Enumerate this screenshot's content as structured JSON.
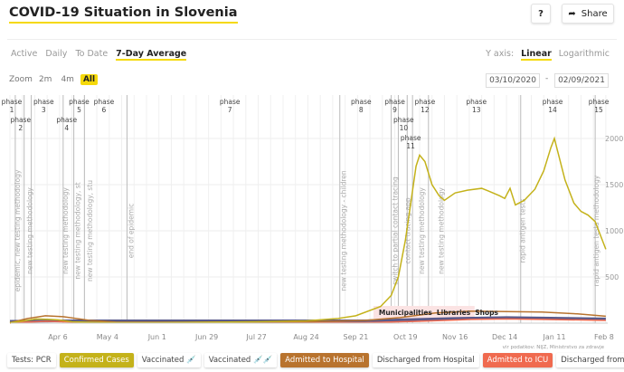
{
  "header": {
    "title": "COVID-19 Situation in Slovenia",
    "help": "?",
    "share": "Share"
  },
  "tabs": [
    "Active",
    "Daily",
    "To Date",
    "7-Day Average"
  ],
  "active_tab": "7-Day Average",
  "yaxis": {
    "label": "Y axis:",
    "options": [
      "Linear",
      "Logarithmic"
    ],
    "selected": "Linear"
  },
  "zoom": {
    "label": "Zoom",
    "options": [
      "2m",
      "4m",
      "All"
    ],
    "selected": "All"
  },
  "date_range": {
    "from": "03/10/2020",
    "sep": "-",
    "to": "02/09/2021"
  },
  "source": "vir podatkov: NIJZ, Ministrstvo za zdravje",
  "legend": [
    {
      "label": "Tests: PCR",
      "bg": "#ffffff",
      "fg": "#444"
    },
    {
      "label": "Confirmed Cases",
      "bg": "#c4b21a",
      "fg": "#fff"
    },
    {
      "label": "Vaccinated 💉",
      "bg": "#ffffff",
      "fg": "#444"
    },
    {
      "label": "Vaccinated 💉💉",
      "bg": "#ffffff",
      "fg": "#444"
    },
    {
      "label": "Admitted to Hospital",
      "bg": "#b8732e",
      "fg": "#fff"
    },
    {
      "label": "Discharged from Hospital",
      "bg": "#ffffff",
      "fg": "#444"
    },
    {
      "label": "Admitted to ICU",
      "bg": "#f06a4f",
      "fg": "#fff"
    },
    {
      "label": "Discharged from ICU",
      "bg": "#ffffff",
      "fg": "#444"
    }
  ],
  "chart_data": {
    "type": "line",
    "x_start": "2020-03-10",
    "x_days": 336,
    "ylim": [
      0,
      2500
    ],
    "yticks": [
      500,
      1000,
      1500,
      2000
    ],
    "xticks": [
      {
        "day": 27,
        "label": "Apr 6"
      },
      {
        "day": 55,
        "label": "May 4"
      },
      {
        "day": 83,
        "label": "Jun 1"
      },
      {
        "day": 111,
        "label": "Jun 29"
      },
      {
        "day": 139,
        "label": "Jul 27"
      },
      {
        "day": 167,
        "label": "Aug 24"
      },
      {
        "day": 195,
        "label": "Sep 21"
      },
      {
        "day": 223,
        "label": "Oct 19"
      },
      {
        "day": 251,
        "label": "Nov 16"
      },
      {
        "day": 279,
        "label": "Dec 14"
      },
      {
        "day": 307,
        "label": "Jan 11"
      },
      {
        "day": 335,
        "label": "Feb 8"
      }
    ],
    "series": [
      {
        "name": "Confirmed Cases",
        "color": "#c4b21a",
        "points": [
          [
            0,
            5
          ],
          [
            8,
            25
          ],
          [
            15,
            45
          ],
          [
            22,
            40
          ],
          [
            27,
            35
          ],
          [
            35,
            15
          ],
          [
            55,
            5
          ],
          [
            83,
            5
          ],
          [
            111,
            10
          ],
          [
            139,
            15
          ],
          [
            167,
            25
          ],
          [
            185,
            50
          ],
          [
            195,
            80
          ],
          [
            209,
            180
          ],
          [
            215,
            300
          ],
          [
            219,
            500
          ],
          [
            223,
            900
          ],
          [
            226,
            1300
          ],
          [
            229,
            1700
          ],
          [
            231,
            1820
          ],
          [
            234,
            1750
          ],
          [
            238,
            1500
          ],
          [
            242,
            1380
          ],
          [
            245,
            1330
          ],
          [
            251,
            1410
          ],
          [
            258,
            1440
          ],
          [
            266,
            1460
          ],
          [
            270,
            1430
          ],
          [
            276,
            1380
          ],
          [
            279,
            1350
          ],
          [
            282,
            1460
          ],
          [
            285,
            1280
          ],
          [
            290,
            1330
          ],
          [
            296,
            1450
          ],
          [
            301,
            1650
          ],
          [
            305,
            1900
          ],
          [
            307,
            2000
          ],
          [
            309,
            1850
          ],
          [
            313,
            1550
          ],
          [
            318,
            1300
          ],
          [
            322,
            1210
          ],
          [
            326,
            1170
          ],
          [
            330,
            1100
          ],
          [
            333,
            950
          ],
          [
            336,
            800
          ]
        ]
      },
      {
        "name": "Admitted to Hospital",
        "color": "#b8732e",
        "points": [
          [
            0,
            5
          ],
          [
            10,
            50
          ],
          [
            20,
            80
          ],
          [
            30,
            70
          ],
          [
            45,
            30
          ],
          [
            60,
            10
          ],
          [
            100,
            10
          ],
          [
            170,
            15
          ],
          [
            200,
            30
          ],
          [
            220,
            60
          ],
          [
            240,
            110
          ],
          [
            260,
            130
          ],
          [
            280,
            125
          ],
          [
            300,
            120
          ],
          [
            320,
            100
          ],
          [
            336,
            75
          ]
        ]
      },
      {
        "name": "Admitted to ICU",
        "color": "#f06a4f",
        "points": [
          [
            0,
            2
          ],
          [
            20,
            20
          ],
          [
            40,
            10
          ],
          [
            80,
            3
          ],
          [
            200,
            5
          ],
          [
            230,
            20
          ],
          [
            260,
            40
          ],
          [
            280,
            45
          ],
          [
            300,
            40
          ],
          [
            336,
            30
          ]
        ]
      },
      {
        "name": "Tests: PCR",
        "color": "#5a5a8a",
        "points": [
          [
            0,
            20
          ],
          [
            30,
            25
          ],
          [
            200,
            25
          ],
          [
            250,
            50
          ],
          [
            280,
            60
          ],
          [
            300,
            55
          ],
          [
            336,
            45
          ]
        ]
      }
    ],
    "phases": [
      {
        "label": "phase",
        "n": "1",
        "day": 1
      },
      {
        "label": "phase",
        "n": "2",
        "day": 6
      },
      {
        "label": "phase",
        "n": "3",
        "day": 19
      },
      {
        "label": "phase",
        "n": "4",
        "day": 32
      },
      {
        "label": "phase",
        "n": "5",
        "day": 39
      },
      {
        "label": "phase",
        "n": "6",
        "day": 53
      },
      {
        "label": "phase",
        "n": "7",
        "day": 124
      },
      {
        "label": "phase",
        "n": "8",
        "day": 198
      },
      {
        "label": "phase",
        "n": "9",
        "day": 217
      },
      {
        "label": "phase",
        "n": "10",
        "day": 222
      },
      {
        "label": "phase",
        "n": "11",
        "day": 226
      },
      {
        "label": "phase",
        "n": "12",
        "day": 234
      },
      {
        "label": "phase",
        "n": "13",
        "day": 263
      },
      {
        "label": "phase",
        "n": "14",
        "day": 306
      },
      {
        "label": "phase",
        "n": "15",
        "day": 332
      }
    ],
    "phase_lines": [
      3,
      8,
      12,
      30,
      36,
      42,
      66,
      186,
      215,
      219,
      224,
      227,
      236,
      288,
      330
    ],
    "annotations": [
      {
        "day": 4,
        "text": "epidemic, new testing methodology"
      },
      {
        "day": 11,
        "text": "new testing methodology"
      },
      {
        "day": 31,
        "text": "new testing methodology"
      },
      {
        "day": 38,
        "text": "new testing methodology, st"
      },
      {
        "day": 45,
        "text": "new testing methodology, stu"
      },
      {
        "day": 68,
        "text": "end of epidemic"
      },
      {
        "day": 188,
        "text": "new testing methodology - children"
      },
      {
        "day": 217,
        "text": "switch to partial contact tracing"
      },
      {
        "day": 224,
        "text": "contact tracing app"
      },
      {
        "day": 232,
        "text": "new testing methodology"
      },
      {
        "day": 243,
        "text": "new testing methodology"
      },
      {
        "day": 289,
        "text": "rapid antigen tests"
      },
      {
        "day": 332,
        "text": "rapid antigen tests methodology"
      }
    ],
    "markers": [
      {
        "day": 208,
        "label": "Municipalities"
      },
      {
        "day": 236,
        "label": "Libraries"
      },
      {
        "day": 254,
        "label": "Shops"
      }
    ]
  }
}
